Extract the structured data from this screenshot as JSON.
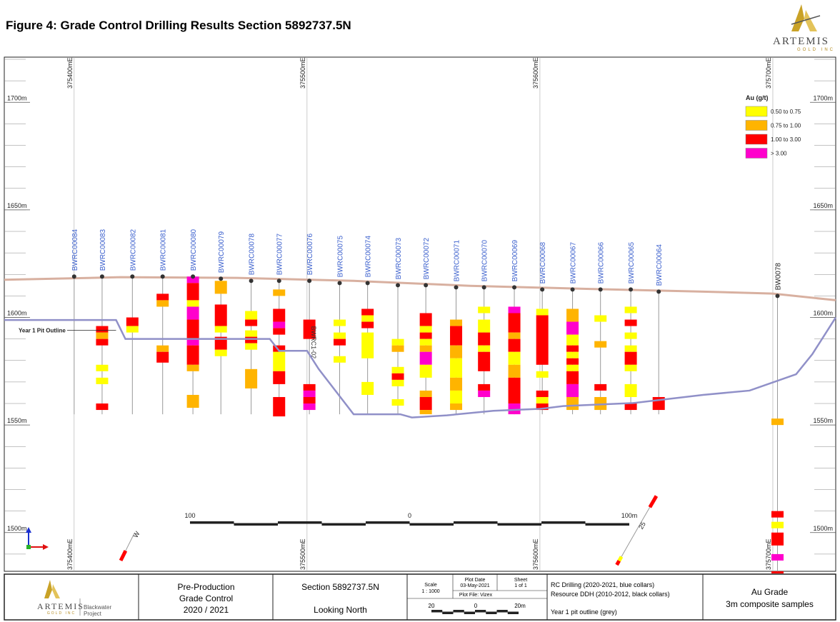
{
  "title": "Figure 4: Grade Control Drilling Results Section 5892737.5N",
  "logo": {
    "wordmark": "ARTEMIS",
    "sub": "GOLD INC"
  },
  "colors": {
    "g050": "#ffff00",
    "g075": "#ffb400",
    "g100": "#ff0000",
    "g300": "#ff00cc",
    "topo": "#d8b0a0",
    "pit": "#9090c8",
    "collar_label": "#3a5fcd"
  },
  "chart_data": {
    "type": "diagram",
    "title": "Figure 4: Grade Control Drilling Results Section 5892737.5N",
    "xlim": [
      375370,
      375727
    ],
    "ylim": [
      1482,
      1721
    ],
    "easting_ticks": [
      {
        "value": 375400,
        "label": "375400mE"
      },
      {
        "value": 375500,
        "label": "375500mE"
      },
      {
        "value": 375600,
        "label": "375600mE"
      },
      {
        "value": 375700,
        "label": "375700mE"
      }
    ],
    "elevation_ticks": [
      {
        "value": 1700,
        "label": "1700m"
      },
      {
        "value": 1650,
        "label": "1650m"
      },
      {
        "value": 1600,
        "label": "1600m"
      },
      {
        "value": 1550,
        "label": "1550m"
      },
      {
        "value": 1500,
        "label": "1500m"
      }
    ],
    "legend": {
      "title": "Au (g/t)",
      "entries": [
        {
          "label": "0.50 to 0.75",
          "color": "#ffff00"
        },
        {
          "label": "0.75 to 1.00",
          "color": "#ffb400"
        },
        {
          "label": "1.00 to 3.00",
          "color": "#ff0000"
        },
        {
          "label": "> 3.00",
          "color": "#ff00cc"
        }
      ]
    },
    "topography": [
      [
        375370,
        1617.5
      ],
      [
        375420,
        1618.7
      ],
      [
        375470,
        1618.4
      ],
      [
        375520,
        1617
      ],
      [
        375570,
        1614.7
      ],
      [
        375620,
        1613.3
      ],
      [
        375670,
        1612
      ],
      [
        375700,
        1611.1
      ],
      [
        375727,
        1608
      ]
    ],
    "pit_outline": {
      "label": "Year 1 Pit Outline",
      "points": [
        [
          375370,
          1598.8
        ],
        [
          375418,
          1598.8
        ],
        [
          375422,
          1590
        ],
        [
          375484,
          1590
        ],
        [
          375488,
          1584.5
        ],
        [
          375500,
          1584.5
        ],
        [
          375505,
          1576
        ],
        [
          375520,
          1555
        ],
        [
          375540,
          1555
        ],
        [
          375545,
          1553.5
        ],
        [
          375560,
          1554.5
        ],
        [
          375580,
          1556.6
        ],
        [
          375600,
          1557.5
        ],
        [
          375610,
          1558.8
        ],
        [
          375640,
          1560.2
        ],
        [
          375670,
          1564
        ],
        [
          375690,
          1566
        ],
        [
          375710,
          1573.6
        ],
        [
          375717,
          1583
        ],
        [
          375727,
          1600
        ]
      ]
    },
    "holes": [
      {
        "id": "BWRC00084",
        "e": 375400,
        "top": 1619,
        "bottom": 1555,
        "intervals": []
      },
      {
        "id": "BWRC00083",
        "e": 375412,
        "top": 1619,
        "bottom": 1555,
        "intervals": [
          [
            1596,
            1593,
            "g100"
          ],
          [
            1593,
            1590,
            "g075"
          ],
          [
            1590,
            1587,
            "g100"
          ],
          [
            1578,
            1575,
            "g050"
          ],
          [
            1572,
            1569,
            "g050"
          ],
          [
            1560,
            1557,
            "g100"
          ]
        ]
      },
      {
        "id": "BWRC00082",
        "e": 375425,
        "top": 1619,
        "bottom": 1555,
        "intervals": [
          [
            1600,
            1596,
            "g100"
          ],
          [
            1596,
            1593,
            "g050"
          ]
        ]
      },
      {
        "id": "BWRC00081",
        "e": 375438,
        "top": 1619,
        "bottom": 1555,
        "intervals": [
          [
            1611,
            1608,
            "g100"
          ],
          [
            1608,
            1605,
            "g075"
          ],
          [
            1587,
            1584,
            "g075"
          ],
          [
            1584,
            1579,
            "g100"
          ]
        ]
      },
      {
        "id": "BWRC00080",
        "e": 375451,
        "top": 1619,
        "bottom": 1555,
        "intervals": [
          [
            1619,
            1616,
            "g300"
          ],
          [
            1616,
            1608,
            "g100"
          ],
          [
            1608,
            1605,
            "g050"
          ],
          [
            1605,
            1599,
            "g300"
          ],
          [
            1599,
            1590,
            "g100"
          ],
          [
            1590,
            1587,
            "g300"
          ],
          [
            1587,
            1578,
            "g100"
          ],
          [
            1578,
            1575,
            "g075"
          ],
          [
            1564,
            1558,
            "g075"
          ]
        ]
      },
      {
        "id": "BWRC00079",
        "e": 375463,
        "top": 1618,
        "bottom": 1555,
        "intervals": [
          [
            1617,
            1611,
            "g075"
          ],
          [
            1606,
            1596,
            "g100"
          ],
          [
            1596,
            1593,
            "g050"
          ],
          [
            1591,
            1585,
            "g100"
          ],
          [
            1585,
            1582,
            "g050"
          ]
        ]
      },
      {
        "id": "BWRC00078",
        "e": 375476,
        "top": 1617,
        "bottom": 1555,
        "intervals": [
          [
            1603,
            1599,
            "g050"
          ],
          [
            1599,
            1596,
            "g100"
          ],
          [
            1594,
            1591,
            "g050"
          ],
          [
            1591,
            1588,
            "g100"
          ],
          [
            1588,
            1585,
            "g050"
          ],
          [
            1576,
            1567,
            "g075"
          ]
        ]
      },
      {
        "id": "BWRC00077",
        "e": 375488,
        "top": 1617,
        "bottom": 1555,
        "intervals": [
          [
            1613,
            1610,
            "g075"
          ],
          [
            1604,
            1598,
            "g100"
          ],
          [
            1598,
            1595,
            "g300"
          ],
          [
            1595,
            1592,
            "g100"
          ],
          [
            1587,
            1584,
            "g100"
          ],
          [
            1584,
            1575,
            "g050"
          ],
          [
            1575,
            1569,
            "g100"
          ],
          [
            1563,
            1554,
            "g100"
          ]
        ]
      },
      {
        "id": "BWRC00076",
        "e": 375501,
        "top": 1617,
        "bottom": 1555,
        "label_mid": "BWRC1-02",
        "intervals": [
          [
            1599,
            1590,
            "g100"
          ],
          [
            1569,
            1566,
            "g100"
          ],
          [
            1566,
            1563,
            "g300"
          ],
          [
            1563,
            1560,
            "g100"
          ],
          [
            1560,
            1557,
            "g300"
          ]
        ]
      },
      {
        "id": "BWRC00075",
        "e": 375514,
        "top": 1616,
        "bottom": 1555,
        "intervals": [
          [
            1599,
            1596,
            "g050"
          ],
          [
            1593,
            1590,
            "g050"
          ],
          [
            1590,
            1587,
            "g100"
          ],
          [
            1582,
            1579,
            "g050"
          ]
        ]
      },
      {
        "id": "BWRC00074",
        "e": 375526,
        "top": 1616,
        "bottom": 1555,
        "intervals": [
          [
            1604,
            1601,
            "g100"
          ],
          [
            1601,
            1598,
            "g050"
          ],
          [
            1598,
            1595,
            "g100"
          ],
          [
            1593,
            1581,
            "g050"
          ],
          [
            1570,
            1564,
            "g050"
          ]
        ]
      },
      {
        "id": "BWRC00073",
        "e": 375539,
        "top": 1615,
        "bottom": 1555,
        "intervals": [
          [
            1590,
            1587,
            "g050"
          ],
          [
            1587,
            1584,
            "g075"
          ],
          [
            1577,
            1574,
            "g050"
          ],
          [
            1574,
            1571,
            "g100"
          ],
          [
            1571,
            1568,
            "g050"
          ],
          [
            1562,
            1559,
            "g050"
          ]
        ]
      },
      {
        "id": "BWRC00072",
        "e": 375551,
        "top": 1615,
        "bottom": 1555,
        "intervals": [
          [
            1602,
            1596,
            "g100"
          ],
          [
            1596,
            1593,
            "g050"
          ],
          [
            1593,
            1590,
            "g100"
          ],
          [
            1590,
            1587,
            "g050"
          ],
          [
            1587,
            1584,
            "g075"
          ],
          [
            1584,
            1578,
            "g300"
          ],
          [
            1578,
            1572,
            "g050"
          ],
          [
            1566,
            1563,
            "g075"
          ],
          [
            1563,
            1557,
            "g100"
          ],
          [
            1557,
            1555,
            "g075"
          ]
        ]
      },
      {
        "id": "BWRC00071",
        "e": 375564,
        "top": 1614,
        "bottom": 1555,
        "intervals": [
          [
            1599,
            1596,
            "g075"
          ],
          [
            1596,
            1587,
            "g100"
          ],
          [
            1587,
            1581,
            "g075"
          ],
          [
            1581,
            1572,
            "g050"
          ],
          [
            1572,
            1566,
            "g075"
          ],
          [
            1566,
            1560,
            "g050"
          ],
          [
            1560,
            1557,
            "g075"
          ]
        ]
      },
      {
        "id": "BWRC00070",
        "e": 375576,
        "top": 1614,
        "bottom": 1555,
        "intervals": [
          [
            1605,
            1602,
            "g050"
          ],
          [
            1599,
            1593,
            "g050"
          ],
          [
            1593,
            1587,
            "g100"
          ],
          [
            1587,
            1584,
            "g050"
          ],
          [
            1584,
            1575,
            "g100"
          ],
          [
            1569,
            1566,
            "g100"
          ],
          [
            1566,
            1563,
            "g300"
          ]
        ]
      },
      {
        "id": "BWRC00069",
        "e": 375589,
        "top": 1614,
        "bottom": 1555,
        "intervals": [
          [
            1605,
            1602,
            "g300"
          ],
          [
            1602,
            1593,
            "g100"
          ],
          [
            1593,
            1590,
            "g075"
          ],
          [
            1590,
            1584,
            "g100"
          ],
          [
            1584,
            1578,
            "g050"
          ],
          [
            1578,
            1572,
            "g075"
          ],
          [
            1572,
            1560,
            "g100"
          ],
          [
            1560,
            1555,
            "g300"
          ]
        ]
      },
      {
        "id": "BWRC00068",
        "e": 375601,
        "top": 1613,
        "bottom": 1555,
        "intervals": [
          [
            1604,
            1601,
            "g050"
          ],
          [
            1601,
            1578,
            "g100"
          ],
          [
            1575,
            1572,
            "g050"
          ],
          [
            1566,
            1563,
            "g100"
          ],
          [
            1563,
            1560,
            "g050"
          ],
          [
            1560,
            1557,
            "g100"
          ]
        ]
      },
      {
        "id": "BWRC00067",
        "e": 375614,
        "top": 1613,
        "bottom": 1555,
        "intervals": [
          [
            1604,
            1598,
            "g075"
          ],
          [
            1598,
            1592,
            "g300"
          ],
          [
            1592,
            1587,
            "g050"
          ],
          [
            1587,
            1584,
            "g100"
          ],
          [
            1584,
            1581,
            "g050"
          ],
          [
            1581,
            1578,
            "g100"
          ],
          [
            1578,
            1575,
            "g050"
          ],
          [
            1575,
            1569,
            "g100"
          ],
          [
            1569,
            1563,
            "g300"
          ],
          [
            1563,
            1557,
            "g075"
          ]
        ]
      },
      {
        "id": "BWRC00066",
        "e": 375626,
        "top": 1613,
        "bottom": 1555,
        "intervals": [
          [
            1601,
            1598,
            "g050"
          ],
          [
            1589,
            1586,
            "g075"
          ],
          [
            1569,
            1566,
            "g100"
          ],
          [
            1563,
            1557,
            "g075"
          ]
        ]
      },
      {
        "id": "BWRC00065",
        "e": 375639,
        "top": 1613,
        "bottom": 1555,
        "intervals": [
          [
            1605,
            1602,
            "g050"
          ],
          [
            1599,
            1596,
            "g100"
          ],
          [
            1593,
            1590,
            "g050"
          ],
          [
            1587,
            1584,
            "g050"
          ],
          [
            1584,
            1578,
            "g100"
          ],
          [
            1578,
            1575,
            "g050"
          ],
          [
            1569,
            1563,
            "g050"
          ],
          [
            1560,
            1557,
            "g100"
          ]
        ]
      },
      {
        "id": "BWRC00064",
        "e": 375651,
        "top": 1612,
        "bottom": 1555,
        "intervals": [
          [
            1563,
            1557,
            "g100"
          ]
        ]
      },
      {
        "id": "BW0078",
        "e": 375702,
        "top": 1610,
        "bottom": 1482,
        "intervals": [
          [
            1553,
            1550,
            "g075"
          ],
          [
            1510,
            1507,
            "g100"
          ],
          [
            1505,
            1502,
            "g050"
          ],
          [
            1500,
            1494,
            "g100"
          ],
          [
            1490,
            1487,
            "g300"
          ],
          [
            1482,
            1480,
            "g100"
          ]
        ]
      }
    ],
    "angled_holes": [
      {
        "label": "W",
        "from": [
          375420,
          1487
        ],
        "to": [
          375426,
          1500
        ],
        "intervals": [
          [
            0.0,
            0.35,
            "g100"
          ]
        ]
      },
      {
        "label": "25",
        "from": [
          375633,
          1485
        ],
        "to": [
          375643,
          1504
        ],
        "intervals": [
          [
            0.0,
            0.1,
            "g100"
          ],
          [
            0.1,
            0.2,
            "g050"
          ]
        ]
      },
      {
        "label": "",
        "from": [
          375643,
          1504
        ],
        "to": [
          375650,
          1517
        ],
        "intervals": [
          [
            0.6,
            1.0,
            "g100"
          ]
        ]
      }
    ],
    "scale_bar": {
      "labels": [
        "100",
        "0",
        "100m"
      ]
    }
  },
  "title_block": {
    "project_label": "Blackwater Project",
    "stage_lines": [
      "Pre-Production",
      "Grade Control",
      "2020 / 2021"
    ],
    "section": "Section 5892737.5N",
    "orientation": "Looking North",
    "scale_label": "Scale",
    "scale_value": "1 : 1000",
    "plot_date_label": "Plot Date",
    "plot_date": "03-May-2021",
    "sheet_label": "Sheet",
    "sheet_value": "1 of 1",
    "plot_file": "Plot File: Vizex",
    "small_scale_labels": [
      "20",
      "0",
      "20m"
    ],
    "notes": [
      "RC Drilling (2020-2021, blue collars)",
      "Resource DDH (2010-2012, black collars)",
      "Year 1 pit outline (grey)"
    ],
    "grade_title": "Au Grade",
    "grade_sub": "3m composite samples"
  }
}
